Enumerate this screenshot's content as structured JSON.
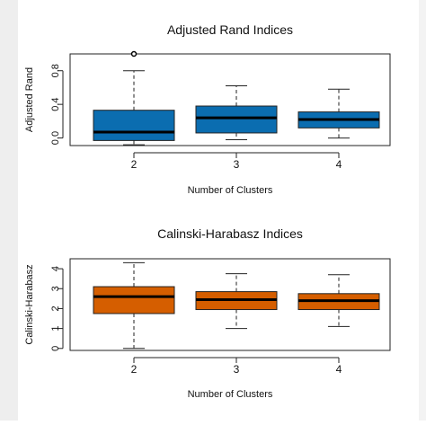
{
  "chart_data": [
    {
      "type": "box",
      "title": "Adjusted Rand Indices",
      "xlabel": "Number of Clusters",
      "ylabel": "Adjusted Rand",
      "ylim": [
        -0.09,
        1.0
      ],
      "yticks": [
        "0.0",
        "0.4",
        "0.8"
      ],
      "ytick_values": [
        0.0,
        0.4,
        0.8
      ],
      "fill_color": "#0b6db0",
      "categories": [
        "2",
        "3",
        "4"
      ],
      "boxes": [
        {
          "category": "2",
          "whisker_low": -0.08,
          "q1": -0.03,
          "median": 0.07,
          "q3": 0.33,
          "whisker_high": 0.8,
          "outliers": [
            1.0
          ]
        },
        {
          "category": "3",
          "whisker_low": -0.02,
          "q1": 0.06,
          "median": 0.24,
          "q3": 0.38,
          "whisker_high": 0.62,
          "outliers": []
        },
        {
          "category": "4",
          "whisker_low": 0.0,
          "q1": 0.12,
          "median": 0.22,
          "q3": 0.31,
          "whisker_high": 0.58,
          "outliers": []
        }
      ]
    },
    {
      "type": "box",
      "title": "Calinski-Harabasz Indices",
      "xlabel": "Number of Clusters",
      "ylabel": "Calinski-Harabasz",
      "ylim": [
        -0.1,
        4.5
      ],
      "yticks": [
        "0",
        "1",
        "2",
        "3",
        "4"
      ],
      "ytick_values": [
        0,
        1,
        2,
        3,
        4
      ],
      "fill_color": "#d55e00",
      "categories": [
        "2",
        "3",
        "4"
      ],
      "boxes": [
        {
          "category": "2",
          "whisker_low": 0.0,
          "q1": 1.75,
          "median": 2.6,
          "q3": 3.1,
          "whisker_high": 4.3,
          "outliers": []
        },
        {
          "category": "3",
          "whisker_low": 1.0,
          "q1": 1.95,
          "median": 2.45,
          "q3": 2.85,
          "whisker_high": 3.75,
          "outliers": []
        },
        {
          "category": "4",
          "whisker_low": 1.1,
          "q1": 1.95,
          "median": 2.4,
          "q3": 2.75,
          "whisker_high": 3.7,
          "outliers": []
        }
      ]
    }
  ]
}
